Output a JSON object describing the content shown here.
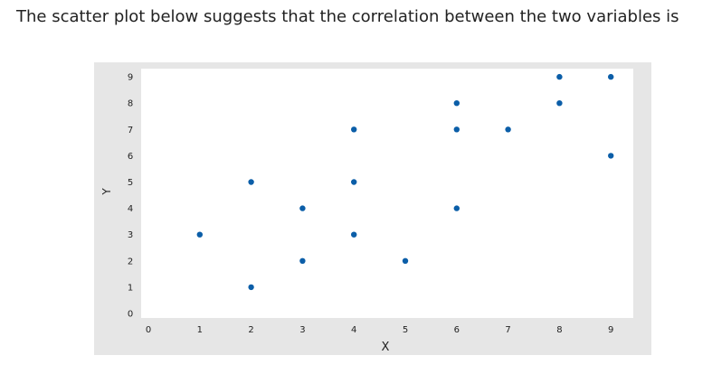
{
  "question": {
    "text": "The scatter plot below suggests that the correlation between the two variables is"
  },
  "chart_data": {
    "type": "scatter",
    "title": "",
    "xlabel": "X",
    "ylabel": "Y",
    "xlim": [
      0,
      9
    ],
    "ylim": [
      0,
      9
    ],
    "x_ticks": [
      0,
      1,
      2,
      3,
      4,
      5,
      6,
      7,
      8,
      9
    ],
    "y_ticks": [
      0,
      1,
      2,
      3,
      4,
      5,
      6,
      7,
      8,
      9
    ],
    "grid": false,
    "legend": "none",
    "colors": {
      "point": "#0b5ea8",
      "frame": "#e6e6e6",
      "plot_bg": "#ffffff",
      "tick_text": "#222222"
    },
    "points": [
      {
        "x": 1,
        "y": 3
      },
      {
        "x": 2,
        "y": 5
      },
      {
        "x": 2,
        "y": 1
      },
      {
        "x": 3,
        "y": 4
      },
      {
        "x": 3,
        "y": 2
      },
      {
        "x": 4,
        "y": 7
      },
      {
        "x": 4,
        "y": 5
      },
      {
        "x": 4,
        "y": 3
      },
      {
        "x": 5,
        "y": 2
      },
      {
        "x": 6,
        "y": 8
      },
      {
        "x": 6,
        "y": 7
      },
      {
        "x": 6,
        "y": 4
      },
      {
        "x": 7,
        "y": 7
      },
      {
        "x": 8,
        "y": 9
      },
      {
        "x": 8,
        "y": 8
      },
      {
        "x": 9,
        "y": 9
      },
      {
        "x": 9,
        "y": 6
      }
    ]
  }
}
